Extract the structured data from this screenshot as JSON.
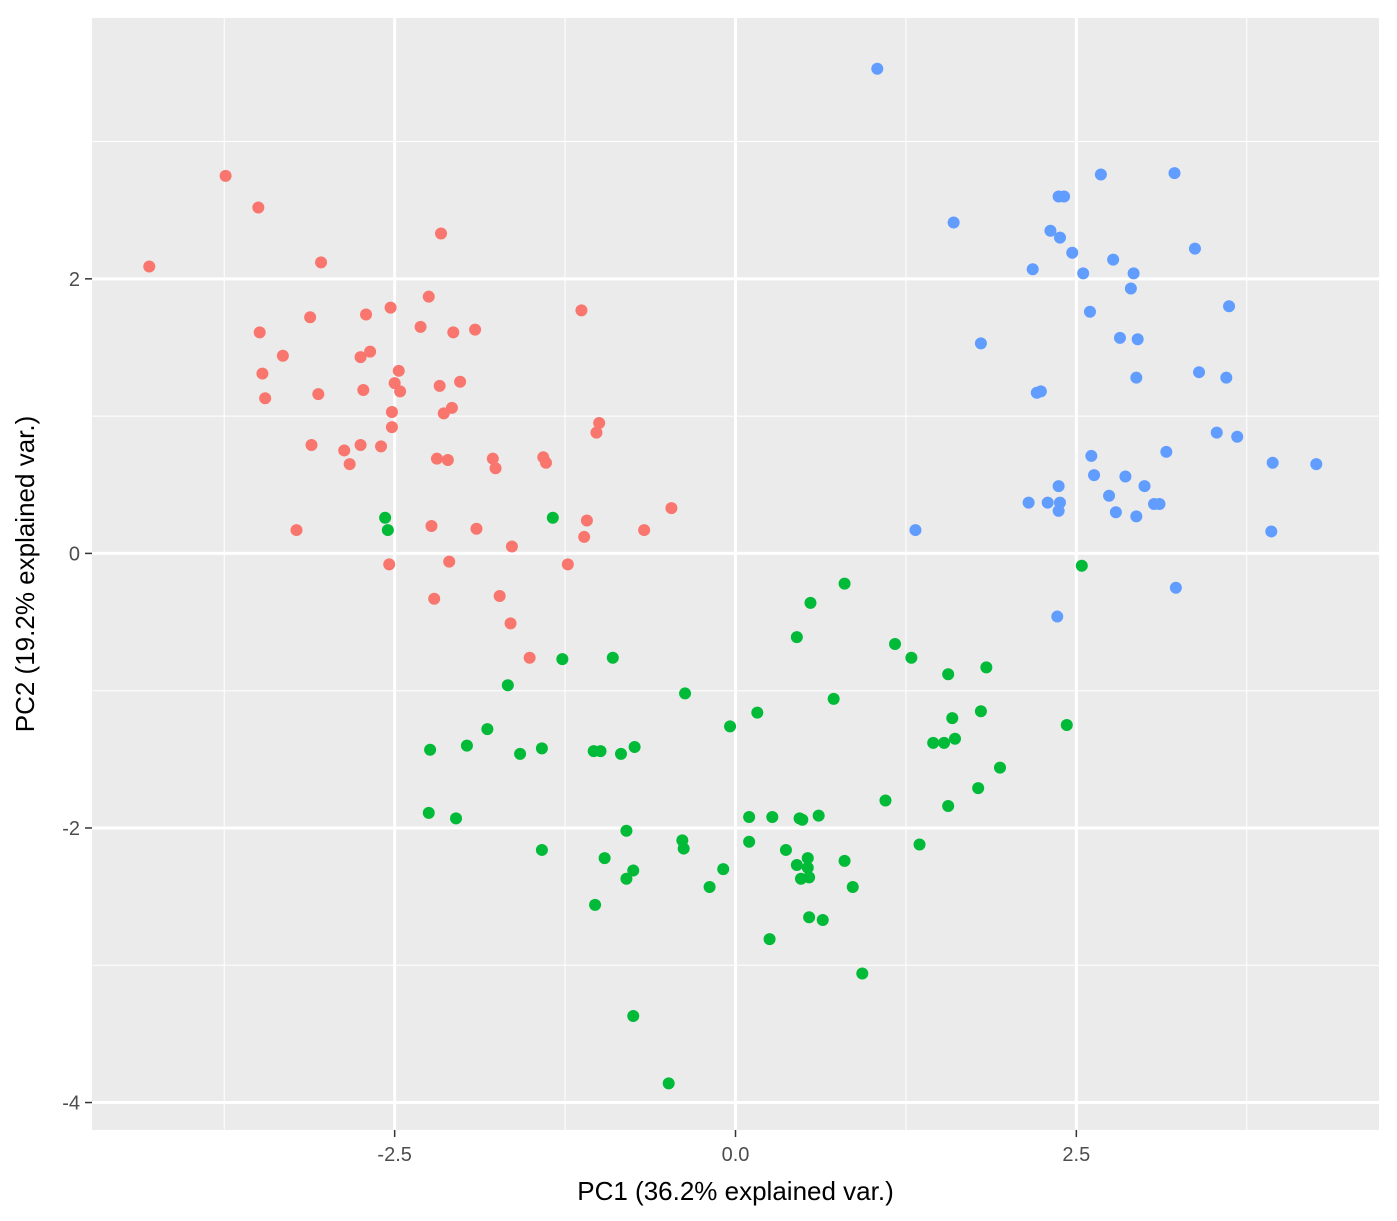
{
  "chart_data": {
    "type": "scatter",
    "xlabel": "PC1 (36.2% explained var.)",
    "ylabel": "PC2 (19.2% explained var.)",
    "xlim": [
      -4.72,
      4.72
    ],
    "ylim": [
      -4.2,
      3.9
    ],
    "x_ticks": [
      -2.5,
      0.0,
      2.5
    ],
    "x_tick_labels": [
      "-2.5",
      "0.0",
      "2.5"
    ],
    "y_ticks": [
      -4,
      -2,
      0,
      2
    ],
    "y_tick_labels": [
      "-4",
      "-2",
      "0",
      "2"
    ],
    "grid": true,
    "legend": "none",
    "panel_color": "#ebebeb",
    "series": [
      {
        "color": "#f8766d",
        "points": [
          [
            -4.3,
            2.09
          ],
          [
            -3.74,
            2.75
          ],
          [
            -3.5,
            2.52
          ],
          [
            -3.49,
            1.61
          ],
          [
            -3.47,
            1.31
          ],
          [
            -3.45,
            1.13
          ],
          [
            -3.32,
            1.44
          ],
          [
            -3.22,
            0.17
          ],
          [
            -3.12,
            1.72
          ],
          [
            -3.11,
            0.79
          ],
          [
            -3.06,
            1.16
          ],
          [
            -3.04,
            2.12
          ],
          [
            -2.87,
            0.75
          ],
          [
            -2.83,
            0.65
          ],
          [
            -2.75,
            1.43
          ],
          [
            -2.75,
            0.79
          ],
          [
            -2.73,
            1.19
          ],
          [
            -2.71,
            1.74
          ],
          [
            -2.68,
            1.47
          ],
          [
            -2.6,
            0.78
          ],
          [
            -2.53,
            1.79
          ],
          [
            -2.52,
            1.03
          ],
          [
            -2.52,
            0.92
          ],
          [
            -2.5,
            1.24
          ],
          [
            -2.47,
            1.33
          ],
          [
            -2.46,
            1.18
          ],
          [
            -2.31,
            1.65
          ],
          [
            -2.25,
            1.87
          ],
          [
            -2.23,
            0.2
          ],
          [
            -2.21,
            -0.33
          ],
          [
            -2.19,
            0.69
          ],
          [
            -2.17,
            1.22
          ],
          [
            -2.16,
            2.33
          ],
          [
            -2.14,
            1.02
          ],
          [
            -2.11,
            0.68
          ],
          [
            -2.08,
            1.06
          ],
          [
            -2.07,
            1.61
          ],
          [
            -2.02,
            1.25
          ],
          [
            -2.1,
            -0.06
          ],
          [
            -1.91,
            1.63
          ],
          [
            -1.9,
            0.18
          ],
          [
            -1.78,
            0.69
          ],
          [
            -1.76,
            0.62
          ],
          [
            -1.73,
            -0.31
          ],
          [
            -1.65,
            -0.51
          ],
          [
            -1.64,
            0.05
          ],
          [
            -1.51,
            -0.76
          ],
          [
            -1.41,
            0.7
          ],
          [
            -1.39,
            0.66
          ],
          [
            -1.23,
            -0.08
          ],
          [
            -1.13,
            1.77
          ],
          [
            -1.11,
            0.12
          ],
          [
            -1.09,
            0.24
          ],
          [
            -1.02,
            0.88
          ],
          [
            -1.0,
            0.95
          ],
          [
            -0.67,
            0.17
          ],
          [
            -0.47,
            0.33
          ],
          [
            -2.54,
            -0.08
          ]
        ]
      },
      {
        "color": "#00ba38",
        "points": [
          [
            -2.57,
            0.26
          ],
          [
            -2.55,
            0.17
          ],
          [
            -1.34,
            0.26
          ],
          [
            -2.24,
            -1.43
          ],
          [
            -2.25,
            -1.89
          ],
          [
            -2.05,
            -1.93
          ],
          [
            -1.97,
            -1.4
          ],
          [
            -1.82,
            -1.28
          ],
          [
            -1.67,
            -0.96
          ],
          [
            -1.58,
            -1.46
          ],
          [
            -1.42,
            -1.42
          ],
          [
            -1.42,
            -2.16
          ],
          [
            -1.27,
            -0.77
          ],
          [
            -1.04,
            -1.44
          ],
          [
            -1.03,
            -2.56
          ],
          [
            -0.99,
            -1.44
          ],
          [
            -0.96,
            -2.22
          ],
          [
            -0.9,
            -0.76
          ],
          [
            -0.84,
            -1.46
          ],
          [
            -0.8,
            -2.02
          ],
          [
            -0.8,
            -2.37
          ],
          [
            -0.75,
            -2.31
          ],
          [
            -0.75,
            -3.37
          ],
          [
            -0.74,
            -1.41
          ],
          [
            -0.49,
            -3.86
          ],
          [
            -0.39,
            -2.09
          ],
          [
            -0.38,
            -2.15
          ],
          [
            -0.37,
            -1.02
          ],
          [
            -0.19,
            -2.43
          ],
          [
            -0.09,
            -2.3
          ],
          [
            -0.04,
            -1.26
          ],
          [
            0.1,
            -1.92
          ],
          [
            0.1,
            -2.1
          ],
          [
            0.16,
            -1.16
          ],
          [
            0.25,
            -2.81
          ],
          [
            0.27,
            -1.92
          ],
          [
            0.37,
            -2.16
          ],
          [
            0.45,
            -0.61
          ],
          [
            0.45,
            -2.27
          ],
          [
            0.47,
            -1.93
          ],
          [
            0.48,
            -2.37
          ],
          [
            0.49,
            -1.94
          ],
          [
            0.53,
            -2.22
          ],
          [
            0.53,
            -2.29
          ],
          [
            0.54,
            -2.36
          ],
          [
            0.54,
            -2.65
          ],
          [
            0.55,
            -0.36
          ],
          [
            0.61,
            -1.91
          ],
          [
            0.64,
            -2.67
          ],
          [
            0.72,
            -1.06
          ],
          [
            0.8,
            -0.22
          ],
          [
            0.8,
            -2.24
          ],
          [
            0.86,
            -2.43
          ],
          [
            0.93,
            -3.06
          ],
          [
            1.1,
            -1.8
          ],
          [
            1.17,
            -0.66
          ],
          [
            1.29,
            -0.76
          ],
          [
            1.35,
            -2.12
          ],
          [
            1.45,
            -1.38
          ],
          [
            1.53,
            -1.38
          ],
          [
            1.56,
            -0.88
          ],
          [
            1.56,
            -1.84
          ],
          [
            1.59,
            -1.2
          ],
          [
            1.61,
            -1.35
          ],
          [
            1.78,
            -1.71
          ],
          [
            1.8,
            -1.15
          ],
          [
            1.84,
            -0.83
          ],
          [
            1.94,
            -1.56
          ],
          [
            2.43,
            -1.25
          ],
          [
            2.54,
            -0.09
          ]
        ]
      },
      {
        "color": "#619cff",
        "points": [
          [
            1.04,
            3.53
          ],
          [
            1.32,
            0.17
          ],
          [
            1.6,
            2.41
          ],
          [
            1.8,
            1.53
          ],
          [
            2.15,
            0.37
          ],
          [
            2.18,
            2.07
          ],
          [
            2.21,
            1.17
          ],
          [
            2.24,
            1.18
          ],
          [
            2.29,
            0.37
          ],
          [
            2.31,
            2.35
          ],
          [
            2.36,
            -0.46
          ],
          [
            2.37,
            0.49
          ],
          [
            2.37,
            0.31
          ],
          [
            2.37,
            2.6
          ],
          [
            2.38,
            0.37
          ],
          [
            2.38,
            2.3
          ],
          [
            2.41,
            2.6
          ],
          [
            2.47,
            2.19
          ],
          [
            2.55,
            2.04
          ],
          [
            2.6,
            1.76
          ],
          [
            2.61,
            0.71
          ],
          [
            2.63,
            0.57
          ],
          [
            2.68,
            2.76
          ],
          [
            2.74,
            0.42
          ],
          [
            2.77,
            2.14
          ],
          [
            2.79,
            0.3
          ],
          [
            2.82,
            1.57
          ],
          [
            2.86,
            0.56
          ],
          [
            2.9,
            1.93
          ],
          [
            2.92,
            2.04
          ],
          [
            2.94,
            1.28
          ],
          [
            2.94,
            0.27
          ],
          [
            2.95,
            1.56
          ],
          [
            3.0,
            0.49
          ],
          [
            3.07,
            0.36
          ],
          [
            3.11,
            0.36
          ],
          [
            3.16,
            0.74
          ],
          [
            3.22,
            2.77
          ],
          [
            3.23,
            -0.25
          ],
          [
            3.37,
            2.22
          ],
          [
            3.4,
            1.32
          ],
          [
            3.53,
            0.88
          ],
          [
            3.6,
            1.28
          ],
          [
            3.62,
            1.8
          ],
          [
            3.68,
            0.85
          ],
          [
            3.93,
            0.16
          ],
          [
            3.94,
            0.66
          ],
          [
            4.26,
            0.65
          ]
        ]
      }
    ]
  }
}
